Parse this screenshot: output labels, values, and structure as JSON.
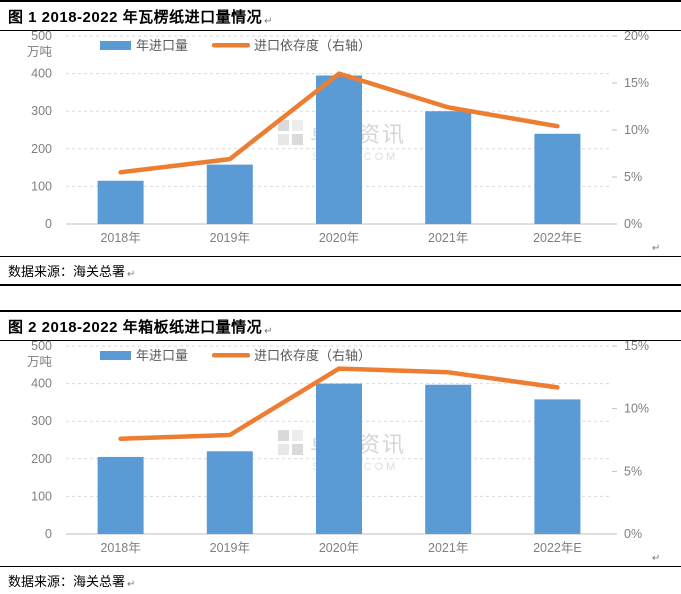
{
  "marks": {
    "pilcrow": "↵"
  },
  "colors": {
    "bar": "#5B9BD5",
    "line": "#ED7D31",
    "axis_text": "#7f7f7f",
    "legend_text": "#595959",
    "grid": "#d9d9d9",
    "axis_line": "#bfbfbf",
    "watermark": "#c9c9c9"
  },
  "watermark": {
    "name": "卓创资讯",
    "domain": "SCI99.COM"
  },
  "chart_data": [
    {
      "type": "bar",
      "combo": "bar+line",
      "title": "图 1 2018-2022 年瓦楞纸进口量情况",
      "source": "数据来源：海关总署",
      "categories": [
        "2018年",
        "2019年",
        "2020年",
        "2021年",
        "2022年E"
      ],
      "series": [
        {
          "name": "年进口量",
          "type": "bar",
          "axis": "left",
          "color": "#5B9BD5",
          "values": [
            115,
            158,
            395,
            300,
            240
          ]
        },
        {
          "name": "进口依存度（右轴）",
          "type": "line",
          "axis": "right",
          "color": "#ED7D31",
          "values": [
            5.5,
            6.9,
            16.0,
            12.4,
            10.4
          ]
        }
      ],
      "left_axis": {
        "unit": "万吨",
        "min": 0,
        "max": 500,
        "step": 100,
        "ticks": [
          "0",
          "100",
          "200",
          "300",
          "400",
          "500"
        ]
      },
      "right_axis": {
        "min": 0,
        "max": 20,
        "step": 5,
        "ticks": [
          "0%",
          "5%",
          "10%",
          "15%",
          "20%"
        ]
      },
      "grid": true,
      "legend_position": "top"
    },
    {
      "type": "bar",
      "combo": "bar+line",
      "title": "图 2 2018-2022 年箱板纸进口量情况",
      "source": "数据来源：海关总署",
      "categories": [
        "2018年",
        "2019年",
        "2020年",
        "2021年",
        "2022年E"
      ],
      "series": [
        {
          "name": "年进口量",
          "type": "bar",
          "axis": "left",
          "color": "#5B9BD5",
          "values": [
            205,
            220,
            400,
            397,
            358
          ]
        },
        {
          "name": "进口依存度（右轴）",
          "type": "line",
          "axis": "right",
          "color": "#ED7D31",
          "values": [
            7.6,
            7.9,
            13.2,
            12.9,
            11.7
          ]
        }
      ],
      "left_axis": {
        "unit": "万吨",
        "min": 0,
        "max": 500,
        "step": 100,
        "ticks": [
          "0",
          "100",
          "200",
          "300",
          "400",
          "500"
        ]
      },
      "right_axis": {
        "min": 0,
        "max": 15,
        "step": 5,
        "ticks": [
          "0%",
          "5%",
          "10%",
          "15%"
        ]
      },
      "grid": true,
      "legend_position": "top"
    }
  ]
}
